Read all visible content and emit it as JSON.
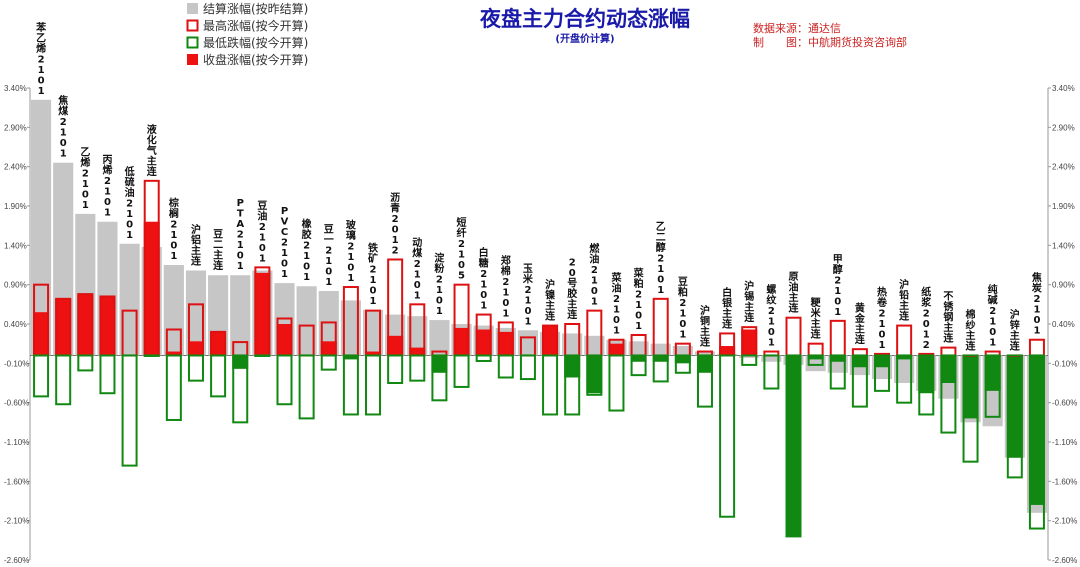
{
  "chart_data": {
    "type": "bar",
    "title": "夜盘主力合约动态涨幅",
    "subtitle": "(开盘价计算)",
    "source_lines": [
      "数据来源：通达信",
      "制　　图：中航期货投资咨询部"
    ],
    "ylim": [
      -2.6,
      3.4
    ],
    "ticks": [
      "3.40%",
      "2.90%",
      "2.40%",
      "1.90%",
      "1.40%",
      "0.90%",
      "0.40%",
      "-0.10%",
      "-0.60%",
      "-1.10%",
      "-1.60%",
      "-2.10%",
      "-2.60%"
    ],
    "tick_values": [
      3.4,
      2.9,
      2.4,
      1.9,
      1.4,
      0.9,
      0.4,
      -0.1,
      -0.6,
      -1.1,
      -1.6,
      -2.1,
      -2.6
    ],
    "legend_position": "top-left",
    "colors": {
      "settle": "#c6c6c6",
      "high": "#dd1111",
      "low": "#118811",
      "close": "#ee1111"
    },
    "series": [
      {
        "key": "settle",
        "name": "结算涨幅(按昨结算)"
      },
      {
        "key": "high",
        "name": "最高涨幅(按今开算)"
      },
      {
        "key": "low",
        "name": "最低跌幅(按今开算)"
      },
      {
        "key": "close",
        "name": "收盘涨幅(按今开算)"
      }
    ],
    "categories": [
      "苯乙烯2101",
      "焦煤2101",
      "乙烯2101",
      "丙烯2101",
      "低硫油2101",
      "液化气主连",
      "棕榈2101",
      "沪铝主连",
      "豆二主连",
      "PTA2101",
      "豆油2101",
      "PVC2101",
      "橡胶2101",
      "豆一2101",
      "玻璃2101",
      "铁矿2101",
      "沥青2012",
      "动煤2101",
      "淀粉2101",
      "短纤2105",
      "白糖2101",
      "郑棉2101",
      "玉米2101",
      "沪镍主连",
      "20号胶主连",
      "燃油2101",
      "菜油2101",
      "菜粕2101",
      "乙二醇2101",
      "豆粕2101",
      "沪铜主连",
      "白银主连",
      "沪锡主连",
      "螺纹2101",
      "原油主连",
      "粳米主连",
      "甲醇2101",
      "黄金主连",
      "热卷2101",
      "沪铅主连",
      "纸浆2012",
      "不锈钢主连",
      "棉纱主连",
      "纯碱2101",
      "沪锌主连",
      "焦炭2101"
    ],
    "settle": [
      3.25,
      2.45,
      1.8,
      1.7,
      1.42,
      1.38,
      1.15,
      1.08,
      1.02,
      1.02,
      1.08,
      0.92,
      0.88,
      0.82,
      0.7,
      0.58,
      0.52,
      0.5,
      0.45,
      0.4,
      0.38,
      0.35,
      0.32,
      0.3,
      0.28,
      0.25,
      0.2,
      0.18,
      0.15,
      0.12,
      0.05,
      0.02,
      -0.03,
      -0.08,
      -0.12,
      -0.2,
      -0.22,
      -0.25,
      -0.3,
      -0.35,
      -0.45,
      -0.55,
      -0.85,
      -0.9,
      -1.3,
      -2.0
    ],
    "high": [
      0.9,
      0.72,
      0.78,
      0.75,
      0.57,
      2.22,
      0.33,
      0.65,
      0.3,
      0.17,
      1.12,
      0.47,
      0.38,
      0.42,
      0.87,
      0.57,
      1.22,
      0.65,
      0.05,
      0.9,
      0.52,
      0.42,
      0.23,
      0.38,
      0.4,
      0.57,
      0.2,
      0.26,
      0.72,
      0.15,
      0.05,
      0.28,
      0.36,
      0.05,
      0.48,
      0.15,
      0.44,
      0.08,
      0.02,
      0.38,
      0.02,
      0.1,
      0.0,
      0.05,
      0.0,
      0.2
    ],
    "low": [
      -0.52,
      -0.62,
      -0.19,
      -0.48,
      -1.4,
      0.0,
      -0.82,
      -0.32,
      -0.52,
      -0.85,
      0.0,
      -0.62,
      -0.8,
      -0.18,
      -0.75,
      -0.75,
      -0.35,
      -0.32,
      -0.57,
      -0.4,
      -0.07,
      -0.28,
      -0.3,
      -0.75,
      -0.75,
      -0.5,
      -0.7,
      -0.25,
      -0.33,
      -0.22,
      -0.65,
      -2.05,
      -0.12,
      -0.42,
      -2.3,
      -0.12,
      -0.42,
      -0.65,
      -0.45,
      -0.6,
      -0.75,
      -0.98,
      -1.35,
      -0.78,
      -1.55,
      -2.2
    ],
    "close": [
      0.55,
      0.72,
      0.78,
      0.75,
      0.0,
      1.7,
      0.05,
      0.18,
      0.3,
      -0.17,
      1.05,
      0.4,
      0.0,
      0.18,
      -0.05,
      0.05,
      0.25,
      0.1,
      -0.22,
      0.35,
      0.33,
      0.3,
      0.0,
      0.38,
      -0.28,
      -0.48,
      0.15,
      -0.08,
      -0.08,
      -0.1,
      -0.22,
      0.12,
      0.33,
      0.0,
      -2.3,
      -0.05,
      -0.08,
      -0.15,
      -0.15,
      -0.05,
      -0.48,
      -0.35,
      -0.8,
      -0.45,
      -1.3,
      -1.9
    ]
  }
}
